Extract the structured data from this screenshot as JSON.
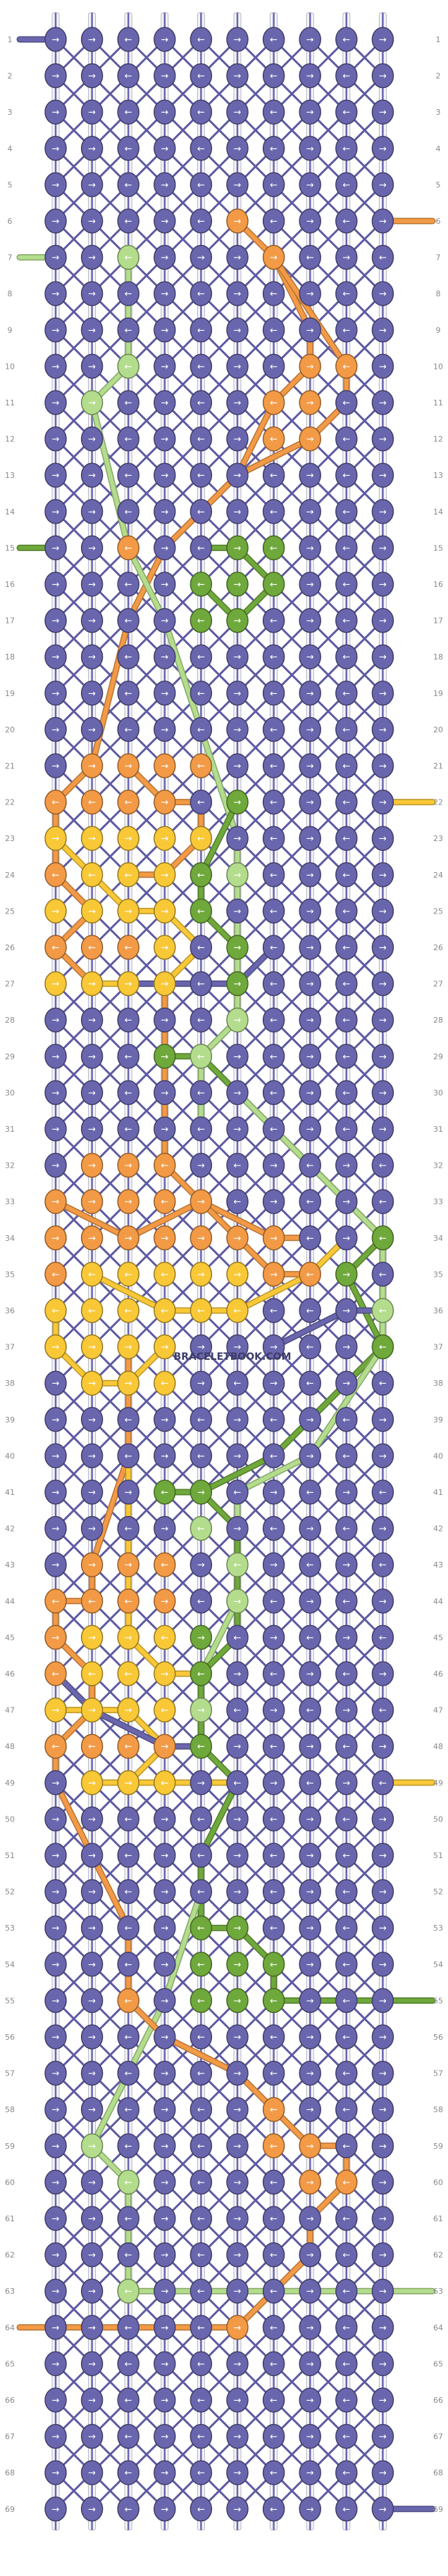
{
  "pattern": {
    "rows": 69,
    "strings": 10,
    "watermark": "BRACELETBOOK.COM",
    "colors": {
      "P": "#6a66ae",
      "O": "#f39a46",
      "Y": "#f9c837",
      "G": "#6fa83b",
      "L": "#b3dd8c"
    },
    "arrows": {
      "r": "→",
      "l": "←"
    },
    "row_labels": [
      1,
      2,
      3,
      4,
      5,
      6,
      7,
      8,
      9,
      10,
      11,
      12,
      13,
      14,
      15,
      16,
      17,
      18,
      19,
      20,
      21,
      22,
      23,
      24,
      25,
      26,
      27,
      28,
      29,
      30,
      31,
      32,
      33,
      34,
      35,
      36,
      37,
      38,
      39,
      40,
      41,
      42,
      43,
      44,
      45,
      46,
      47,
      48,
      49,
      50,
      51,
      52,
      53,
      54,
      55,
      56,
      57,
      58,
      59,
      60,
      61,
      62,
      63,
      64,
      65,
      66,
      67,
      68,
      69
    ],
    "grid": [
      "PPPPPPPPPP",
      "PPPPPPPPPP",
      "PPPPPPPPPP",
      "PPPPPPPPPP",
      "PPPPPPPPPP",
      "PPPPPOPPPP",
      "PPLPPPOPPP",
      "PPPPPPPPPP",
      "PPPPPPPPPP",
      "PPLPPPPOOP",
      "PLPPPPOOPP",
      "PPPPPPOOPP",
      "PPPPPPPPPP",
      "PPPPPPPPPP",
      "PPOPPGGPPP",
      "PPPPGGGPPP",
      "PPPPGGPPPP",
      "PPPPPPPPPP",
      "PPPPPPPPPP",
      "PPPPPPPPPP",
      "POOOOPPPPP",
      "OOOOPGPPPP",
      "YYYYYPPPPP",
      "OYYYGLPPPP",
      "YYYYGPPPPP",
      "OOOYPGPPPP",
      "YYYYPGPPPP",
      "PPPPPLPPPP",
      "PPPGLPPPPP",
      "PPPPPPPPPP",
      "PPPPPPPPPP",
      "POOOPPPPPP",
      "OOOOOPPPPP",
      "OOOOOOOPPG",
      "OYYYYYOOGP",
      "YYYYYYPPPL",
      "YYYYPPPPPG",
      "PYYYPPPPPP",
      "PPPPPPPPPP",
      "PPPPPPPPPP",
      "PPPGGPPPPP",
      "PPPPLPPPPP",
      "POOOPLPPPP",
      "OOOOPLPPPP",
      "OYYYGPPPPP",
      "OYYYGPPPPP",
      "YYYYLPPPPP",
      "OOOOGPPPPP",
      "PYYYPPPPPP",
      "PPPPPPPPPP",
      "PPPPPPPPPP",
      "PPPPPPPPPP",
      "PPPPGGPPPP",
      "PPPPGGGPPP",
      "PPOPGGGPPP",
      "PPPPPPPPPP",
      "PPPPPPPPPP",
      "PPPPPPOPPP",
      "PLPPPPOOPP",
      "PPLPPPPOOP",
      "PPPPPPPPPP",
      "PPPPPPPPPP",
      "PPLPPPPPPP",
      "PPPPPOPPPP",
      "PPPPPPPPPP",
      "PPPPPPPPPP",
      "PPPPPPPPPP",
      "PPPPPPPPPP",
      "PPPPPPPPPP"
    ],
    "knot_dirs": [
      "rrlrlrlrlr",
      "rrlrlrlrlr",
      "rrlrlrlrlr",
      "rrlrlrlrlr",
      "rrlrlrlrlr",
      "rrlrlrlrlr",
      "rrlrrrrlrl",
      "rrlrlrlrlr",
      "rrlrlrlrlr",
      "rrlrlrlrlr",
      "rrlrlrlrlr",
      "rrlrlrlrlr",
      "rrlrlrlrlr",
      "rrlrlrlrlr",
      "rrlrlrlrlr",
      "rrlrlrlrlr",
      "rrlrlrlrlr",
      "rrlrlrlrlr",
      "rrlrlrlrlr",
      "rrlrlrlrlr",
      "rrrrlrlrlr",
      "lllrlrlrlr",
      "rrrrlrlrlr",
      "lllrlrlrlr",
      "rrrrlrlrlr",
      "lllrlrlrlr",
      "rrrrlrlrlr",
      "rrlrlrlrlr",
      "rrlrlrlrlr",
      "rrlrlrlrlr",
      "rrlrlrlrlr",
      "rrrlrlrlrl",
      "rrrlrlrlrl",
      "rrrrrrrlrl",
      "llllrrrlrl",
      "llllllllrl",
      "rrrrrrrlrl",
      "rrrlrlrlrl",
      "rrlrlrlrlr",
      "rrlrlrlrlr",
      "rrrlrlrlrl",
      "rrlrlrlrlr",
      "rrrlrlrlrl",
      "lllrlrlrlr",
      "rrrlrlrlrl",
      "lllrlrlrlr",
      "rrrlrlrlrl",
      "lllrlrlrlr",
      "rrrlrlrlrl",
      "rrlrlrlrlr",
      "rrlrlrlrlr",
      "rrlrlrlrlr",
      "rrlrlrlrlr",
      "rrlrlrlrlr",
      "rrlrlrlrlr",
      "rrlrlrlrlr",
      "rrlrlrlrlr",
      "rrlrlrlrlr",
      "rrlrlrlrlr",
      "rrlrlrlrlr",
      "rrlrlrlrlr",
      "rrlrlrlrlr",
      "rrlrlrlrlr",
      "rrlrlrlrlr",
      "rrlrlrlrlr",
      "rrlrlrlrlr",
      "rrlrlrlrlr",
      "rrlrlrlrlr",
      "rrlrlrlrlr"
    ],
    "string_ends": [
      {
        "row": 1,
        "side": "left",
        "color": "P"
      },
      {
        "row": 6,
        "side": "right",
        "color": "O"
      },
      {
        "row": 7,
        "side": "left",
        "color": "L"
      },
      {
        "row": 15,
        "side": "left",
        "color": "G"
      },
      {
        "row": 22,
        "side": "right",
        "color": "Y"
      },
      {
        "row": 49,
        "side": "right",
        "color": "Y"
      },
      {
        "row": 55,
        "side": "right",
        "color": "G"
      },
      {
        "row": 63,
        "side": "right",
        "color": "L"
      },
      {
        "row": 64,
        "side": "left",
        "color": "O"
      },
      {
        "row": 69,
        "side": "right",
        "color": "P"
      }
    ],
    "threads": [
      {
        "color": "O",
        "pts": [
          [
            5,
            6
          ],
          [
            6,
            7
          ],
          [
            7,
            9
          ],
          [
            7,
            10
          ],
          [
            6,
            11
          ],
          [
            5,
            13
          ],
          [
            3,
            15
          ],
          [
            2,
            17
          ],
          [
            1,
            21
          ]
        ]
      },
      {
        "color": "O",
        "pts": [
          [
            6,
            7
          ],
          [
            8,
            10
          ],
          [
            8,
            11
          ],
          [
            7,
            12
          ],
          [
            5,
            13
          ]
        ]
      },
      {
        "color": "L",
        "pts": [
          [
            2,
            7
          ],
          [
            2,
            10
          ],
          [
            1,
            11
          ],
          [
            2,
            15
          ],
          [
            3,
            17
          ],
          [
            4,
            20
          ],
          [
            5,
            23
          ]
        ]
      },
      {
        "color": "G",
        "pts": [
          [
            4,
            15
          ],
          [
            5,
            15
          ],
          [
            6,
            16
          ],
          [
            5,
            17
          ],
          [
            4,
            16
          ]
        ]
      },
      {
        "color": "G",
        "pts": [
          [
            5,
            22
          ],
          [
            4,
            24
          ],
          [
            4,
            25
          ],
          [
            5,
            26
          ],
          [
            5,
            27
          ],
          [
            5,
            28
          ],
          [
            4,
            29
          ],
          [
            3,
            29
          ]
        ]
      },
      {
        "color": "L",
        "pts": [
          [
            5,
            23
          ],
          [
            5,
            24
          ],
          [
            5,
            28
          ],
          [
            4,
            29
          ],
          [
            4,
            31
          ]
        ]
      },
      {
        "color": "O",
        "pts": [
          [
            1,
            21
          ],
          [
            0,
            22
          ],
          [
            0,
            23
          ],
          [
            0,
            24
          ],
          [
            1,
            25
          ],
          [
            0,
            26
          ],
          [
            1,
            27
          ]
        ]
      },
      {
        "color": "Y",
        "pts": [
          [
            0,
            23
          ],
          [
            1,
            24
          ],
          [
            2,
            25
          ],
          [
            3,
            25
          ],
          [
            4,
            26
          ],
          [
            3,
            27
          ],
          [
            1,
            27
          ]
        ]
      },
      {
        "color": "O",
        "pts": [
          [
            2,
            21
          ],
          [
            3,
            22
          ],
          [
            4,
            22
          ],
          [
            4,
            23
          ],
          [
            3,
            24
          ],
          [
            2,
            24
          ]
        ]
      },
      {
        "color": "O",
        "pts": [
          [
            3,
            27
          ],
          [
            3,
            30
          ],
          [
            3,
            32
          ],
          [
            4,
            33
          ],
          [
            6,
            34
          ],
          [
            7,
            34
          ]
        ]
      },
      {
        "color": "P",
        "pts": [
          [
            2,
            27
          ],
          [
            5,
            27
          ],
          [
            6,
            26
          ]
        ]
      },
      {
        "color": "G",
        "pts": [
          [
            4,
            29
          ],
          [
            5,
            30
          ],
          [
            7,
            32
          ],
          [
            8,
            33
          ],
          [
            9,
            34
          ],
          [
            8,
            35
          ],
          [
            9,
            37
          ],
          [
            8,
            38
          ],
          [
            6,
            40
          ],
          [
            4,
            41
          ],
          [
            3,
            41
          ]
        ]
      },
      {
        "color": "L",
        "pts": [
          [
            5,
            30
          ],
          [
            7,
            32
          ],
          [
            9,
            34
          ],
          [
            9,
            36
          ],
          [
            9,
            37
          ],
          [
            7,
            40
          ],
          [
            5,
            41
          ],
          [
            5,
            42
          ],
          [
            5,
            44
          ],
          [
            4,
            46
          ],
          [
            4,
            47
          ]
        ]
      },
      {
        "color": "O",
        "pts": [
          [
            0,
            33
          ],
          [
            2,
            34
          ],
          [
            4,
            33
          ],
          [
            5,
            34
          ],
          [
            6,
            35
          ],
          [
            7,
            35
          ]
        ]
      },
      {
        "color": "Y",
        "pts": [
          [
            1,
            35
          ],
          [
            3,
            36
          ],
          [
            5,
            36
          ],
          [
            7,
            35
          ],
          [
            8,
            34
          ]
        ]
      },
      {
        "color": "Y",
        "pts": [
          [
            0,
            36
          ],
          [
            0,
            37
          ],
          [
            1,
            38
          ],
          [
            2,
            38
          ],
          [
            3,
            37
          ]
        ]
      },
      {
        "color": "P",
        "pts": [
          [
            6,
            37
          ],
          [
            8,
            36
          ],
          [
            9,
            36
          ]
        ]
      },
      {
        "color": "O",
        "pts": [
          [
            2,
            37
          ],
          [
            2,
            40
          ],
          [
            1,
            43
          ],
          [
            1,
            44
          ],
          [
            0,
            44
          ]
        ]
      },
      {
        "color": "Y",
        "pts": [
          [
            2,
            40
          ],
          [
            2,
            43
          ],
          [
            2,
            45
          ],
          [
            3,
            46
          ],
          [
            4,
            46
          ]
        ]
      },
      {
        "color": "G",
        "pts": [
          [
            4,
            41
          ],
          [
            5,
            42
          ],
          [
            5,
            43
          ],
          [
            5,
            45
          ],
          [
            4,
            46
          ],
          [
            4,
            47
          ],
          [
            4,
            48
          ],
          [
            5,
            49
          ],
          [
            4,
            51
          ],
          [
            4,
            52
          ],
          [
            4,
            53
          ]
        ]
      },
      {
        "color": "O",
        "pts": [
          [
            0,
            44
          ],
          [
            0,
            45
          ],
          [
            1,
            46
          ],
          [
            1,
            47
          ],
          [
            0,
            48
          ],
          [
            0,
            49
          ],
          [
            1,
            51
          ],
          [
            2,
            53
          ],
          [
            2,
            55
          ]
        ]
      },
      {
        "color": "Y",
        "pts": [
          [
            0,
            47
          ],
          [
            2,
            47
          ],
          [
            3,
            48
          ],
          [
            2,
            49
          ],
          [
            1,
            49
          ],
          [
            3,
            49
          ],
          [
            5,
            49
          ]
        ]
      },
      {
        "color": "P",
        "pts": [
          [
            0,
            46
          ],
          [
            1,
            47
          ],
          [
            3,
            48
          ],
          [
            4,
            48
          ]
        ]
      },
      {
        "color": "G",
        "pts": [
          [
            4,
            53
          ],
          [
            5,
            53
          ],
          [
            6,
            54
          ],
          [
            6,
            55
          ],
          [
            9,
            55
          ]
        ]
      },
      {
        "color": "L",
        "pts": [
          [
            4,
            52
          ],
          [
            3,
            55
          ],
          [
            2,
            57
          ],
          [
            1,
            59
          ],
          [
            2,
            60
          ],
          [
            2,
            63
          ]
        ]
      },
      {
        "color": "O",
        "pts": [
          [
            2,
            55
          ],
          [
            3,
            56
          ],
          [
            5,
            57
          ],
          [
            6,
            58
          ],
          [
            7,
            59
          ],
          [
            8,
            59
          ],
          [
            8,
            60
          ],
          [
            7,
            61
          ],
          [
            7,
            62
          ],
          [
            6,
            63
          ],
          [
            5,
            64
          ],
          [
            2,
            64
          ],
          [
            0,
            64
          ]
        ]
      },
      {
        "color": "L",
        "pts": [
          [
            2,
            63
          ],
          [
            8,
            63
          ],
          [
            9,
            63
          ]
        ]
      }
    ]
  }
}
